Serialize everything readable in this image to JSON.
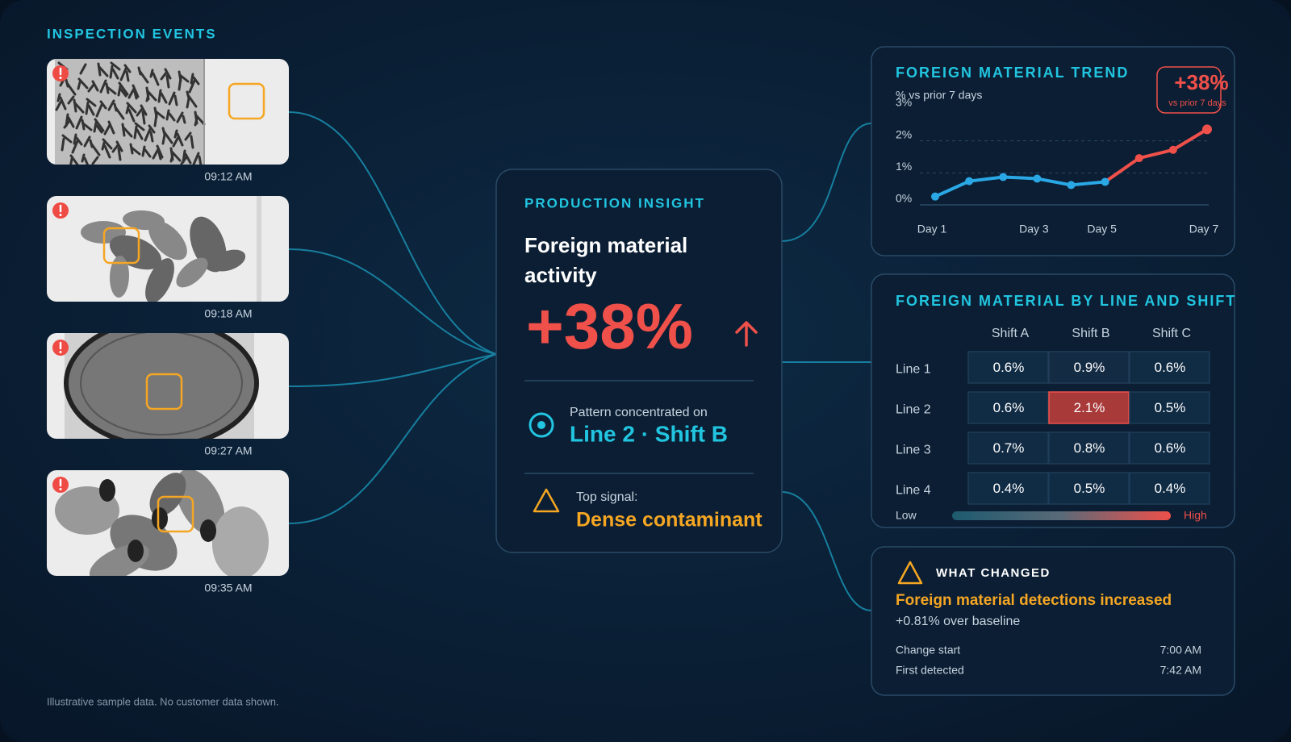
{
  "events": {
    "title": "INSPECTION EVENTS",
    "times": [
      "09:12 AM",
      "09:18 AM",
      "09:27 AM",
      "09:35 AM"
    ]
  },
  "insight": {
    "title": "PRODUCTION INSIGHT",
    "heading": [
      "Foreign material",
      "activity"
    ],
    "change": "+38%",
    "pattern_label": "Pattern concentrated on",
    "pattern": "Line 2 · Shift B",
    "signal_label": "Top signal:",
    "signal": "Dense contaminant"
  },
  "trend": {
    "type": "line",
    "title": "FOREIGN MATERIAL TREND",
    "subtitle": "% vs prior 7 days",
    "badge": "+38%",
    "badge_sub": "vs prior 7 days",
    "categories": [
      "Day 1",
      null,
      null,
      "Day 3",
      null,
      "Day 5",
      null,
      null,
      "Day 7"
    ],
    "values": [
      0.26,
      0.74,
      0.87,
      0.82,
      0.62,
      0.72,
      1.46,
      1.72,
      2.36
    ],
    "color": "#2aa8e6",
    "highlight_color": "#f0504a",
    "highlight_from": 5,
    "ylim": [
      0,
      3
    ],
    "yticks": [
      {
        "value": 0,
        "label": "0%"
      },
      {
        "value": 1,
        "label": "1%"
      },
      {
        "value": 2,
        "label": "2%"
      },
      {
        "value": 3,
        "label": "3%"
      }
    ]
  },
  "heatmap": {
    "type": "heatmap",
    "title": "FOREIGN MATERIAL BY LINE AND SHIFT",
    "columns": [
      "Shift A",
      "Shift B",
      "Shift C"
    ],
    "rows": [
      "Line 1",
      "Line 2",
      "Line 3",
      "Line 4"
    ],
    "values": [
      [
        0.6,
        0.9,
        0.6
      ],
      [
        0.6,
        2.1,
        0.5
      ],
      [
        0.7,
        0.8,
        0.6
      ],
      [
        0.4,
        0.5,
        0.4
      ]
    ],
    "value_labels": [
      [
        "0.6%",
        "0.9%",
        "0.6%"
      ],
      [
        "0.6%",
        "2.1%",
        "0.5%"
      ],
      [
        "0.7%",
        "0.8%",
        "0.6%"
      ],
      [
        "0.4%",
        "0.5%",
        "0.4%"
      ]
    ],
    "low_label": "Low",
    "high_label": "High",
    "low_color": "#1d5a6e",
    "high_color": "#f0504a"
  },
  "changes": {
    "title": "WHAT CHANGED",
    "headline": "Foreign material detections increased",
    "detail": "+0.81% over baseline",
    "rows": [
      [
        "Change start",
        "7:00 AM"
      ],
      [
        "First detected",
        "7:42 AM"
      ]
    ]
  },
  "footer": "Illustrative sample data. No customer data shown."
}
